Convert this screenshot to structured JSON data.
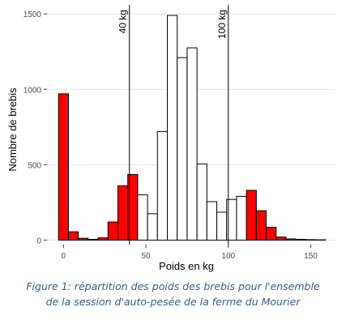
{
  "chart_data": {
    "type": "bar",
    "xlabel": "Poids en kg",
    "ylabel": "Nombre de brebis",
    "xlim": [
      -10,
      165
    ],
    "ylim": [
      -30,
      1560
    ],
    "x_ticks": [
      0,
      50,
      100,
      150
    ],
    "y_ticks": [
      0,
      500,
      1000,
      1500
    ],
    "grid": true,
    "bin_width": 6,
    "bins": [
      {
        "x": 0,
        "count": 970,
        "highlight": true
      },
      {
        "x": 6,
        "count": 55,
        "highlight": true
      },
      {
        "x": 12,
        "count": 12,
        "highlight": true
      },
      {
        "x": 18,
        "count": 5,
        "highlight": true
      },
      {
        "x": 24,
        "count": 15,
        "highlight": true
      },
      {
        "x": 30,
        "count": 120,
        "highlight": true
      },
      {
        "x": 36,
        "count": 360,
        "highlight": true
      },
      {
        "x": 42,
        "count": 435,
        "highlight": true
      },
      {
        "x": 48,
        "count": 300,
        "highlight": false
      },
      {
        "x": 54,
        "count": 175,
        "highlight": false
      },
      {
        "x": 60,
        "count": 720,
        "highlight": false
      },
      {
        "x": 66,
        "count": 1490,
        "highlight": false
      },
      {
        "x": 72,
        "count": 1210,
        "highlight": false
      },
      {
        "x": 78,
        "count": 1275,
        "highlight": false
      },
      {
        "x": 84,
        "count": 505,
        "highlight": false
      },
      {
        "x": 90,
        "count": 255,
        "highlight": false
      },
      {
        "x": 96,
        "count": 185,
        "highlight": false
      },
      {
        "x": 102,
        "count": 270,
        "highlight": false
      },
      {
        "x": 108,
        "count": 290,
        "highlight": false
      },
      {
        "x": 114,
        "count": 330,
        "highlight": true
      },
      {
        "x": 120,
        "count": 195,
        "highlight": true
      },
      {
        "x": 126,
        "count": 85,
        "highlight": true
      },
      {
        "x": 132,
        "count": 20,
        "highlight": true
      },
      {
        "x": 138,
        "count": 8,
        "highlight": true
      },
      {
        "x": 144,
        "count": 5,
        "highlight": true
      },
      {
        "x": 150,
        "count": 3,
        "highlight": true
      },
      {
        "x": 156,
        "count": 2,
        "highlight": true
      }
    ],
    "thresholds": [
      {
        "x": 40,
        "label": "40 kg"
      },
      {
        "x": 100,
        "label": "100 kg"
      }
    ],
    "colors": {
      "highlight": "#ff0000",
      "normal": "#ffffff",
      "outline": "#000000",
      "grid": "#e5e5e5"
    }
  },
  "caption": {
    "line1": "Figure 1: répartition des poids des brebis pour l'ensemble",
    "line2": "de la session d'auto-pesée de la ferme du Mourier"
  }
}
